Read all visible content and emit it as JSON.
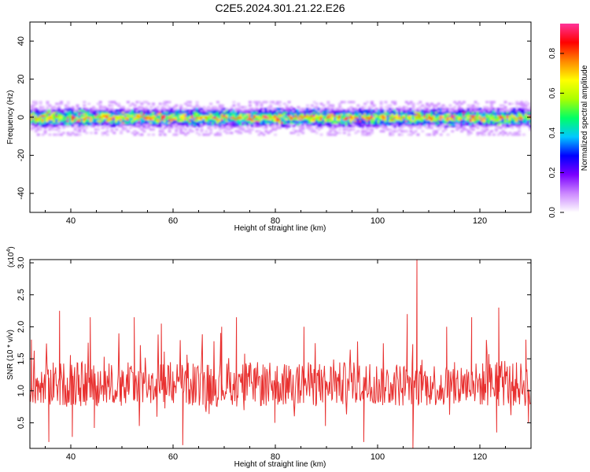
{
  "title": "C2E5.2024.301.21.22.E26",
  "chart_data": [
    {
      "type": "heatmap",
      "xlabel": "Height of straight line (km)",
      "ylabel": "Frequency (Hz)",
      "xlim": [
        32,
        130
      ],
      "ylim": [
        -50,
        50
      ],
      "xticks": [
        40,
        60,
        80,
        100,
        120
      ],
      "yticks": [
        -40,
        -20,
        0,
        20,
        40
      ],
      "band_center_hz": 0,
      "band_halfwidth_hz": 5,
      "colorbar": {
        "label": "Normalized spectral amplitude",
        "range": [
          0,
          0.95
        ],
        "ticks": [
          "0.0",
          "0.2",
          "0.4",
          "0.6",
          "0.8"
        ],
        "colormap": [
          "#ffffff",
          "#cc88ff",
          "#7a00ff",
          "#0000ff",
          "#00c8ff",
          "#00ff66",
          "#aaff00",
          "#ffff00",
          "#ff8800",
          "#ff0000",
          "#ff3399"
        ]
      }
    },
    {
      "type": "line",
      "xlabel": "Height of straight line (km)",
      "ylabel": "SNR (10 * v/v)",
      "y_multiplier": "(x10",
      "y_multiplier_exp": "4",
      "xlim": [
        32,
        130
      ],
      "ylim": [
        0.1,
        3.05
      ],
      "xticks": [
        40,
        60,
        80,
        100,
        120
      ],
      "yticks": [
        "0.5",
        "1.0",
        "1.5",
        "2.0",
        "2.5",
        "3.0"
      ],
      "ytick_values": [
        0.5,
        1.0,
        1.5,
        2.0,
        2.5,
        3.0
      ],
      "line_color": "#e8302f",
      "peaks": [
        {
          "x": 32.3,
          "y": 1.8
        },
        {
          "x": 35.7,
          "y": 0.2
        },
        {
          "x": 37.8,
          "y": 2.25
        },
        {
          "x": 40.3,
          "y": 0.28
        },
        {
          "x": 43.8,
          "y": 2.15
        },
        {
          "x": 44.6,
          "y": 0.42
        },
        {
          "x": 52.4,
          "y": 2.15
        },
        {
          "x": 53.4,
          "y": 0.45
        },
        {
          "x": 57.7,
          "y": 2.05
        },
        {
          "x": 61.9,
          "y": 0.15
        },
        {
          "x": 69.5,
          "y": 2.0
        },
        {
          "x": 72.4,
          "y": 2.15
        },
        {
          "x": 79.9,
          "y": 0.5
        },
        {
          "x": 85.6,
          "y": 2.0
        },
        {
          "x": 89.8,
          "y": 0.45
        },
        {
          "x": 97.3,
          "y": 0.2
        },
        {
          "x": 105.8,
          "y": 2.2
        },
        {
          "x": 106.9,
          "y": 0.1
        },
        {
          "x": 107.7,
          "y": 3.05
        },
        {
          "x": 113.5,
          "y": 2.0
        },
        {
          "x": 118.4,
          "y": 2.15
        },
        {
          "x": 123.3,
          "y": 0.35
        },
        {
          "x": 123.7,
          "y": 2.3
        },
        {
          "x": 129.0,
          "y": 1.8
        },
        {
          "x": 129.5,
          "y": 0.5
        }
      ],
      "baseline_mean": 1.1,
      "baseline_spread": 0.35
    }
  ]
}
